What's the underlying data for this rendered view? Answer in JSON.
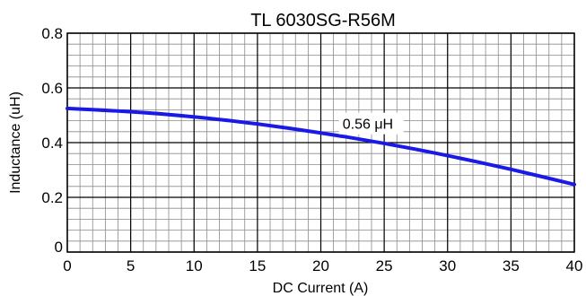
{
  "chart_data": {
    "type": "line",
    "title": "TL 6030SG-R56M",
    "xlabel": "DC Current (A)",
    "ylabel": "Inductance (uH)",
    "xlim": [
      0,
      40
    ],
    "ylim": [
      0,
      0.8
    ],
    "x_ticks": [
      0,
      5,
      10,
      15,
      20,
      25,
      30,
      35,
      40
    ],
    "x_tick_labels": [
      "0",
      "5",
      "10",
      "15",
      "20",
      "25",
      "30",
      "35",
      "40"
    ],
    "y_ticks": [
      0,
      0.2,
      0.4,
      0.6,
      0.8
    ],
    "y_tick_labels": [
      "0",
      "0.2",
      "0.4",
      "0.6",
      "0.8"
    ],
    "grid": true,
    "series": [
      {
        "color": "#1a1ae6",
        "x": [
          0,
          5,
          10,
          15,
          20,
          25,
          30,
          35,
          40
        ],
        "y": [
          0.525,
          0.514,
          0.495,
          0.469,
          0.436,
          0.398,
          0.353,
          0.303,
          0.247
        ]
      }
    ],
    "annotation": {
      "text": "0.56 μH",
      "x": 22,
      "y": 0.47
    }
  }
}
